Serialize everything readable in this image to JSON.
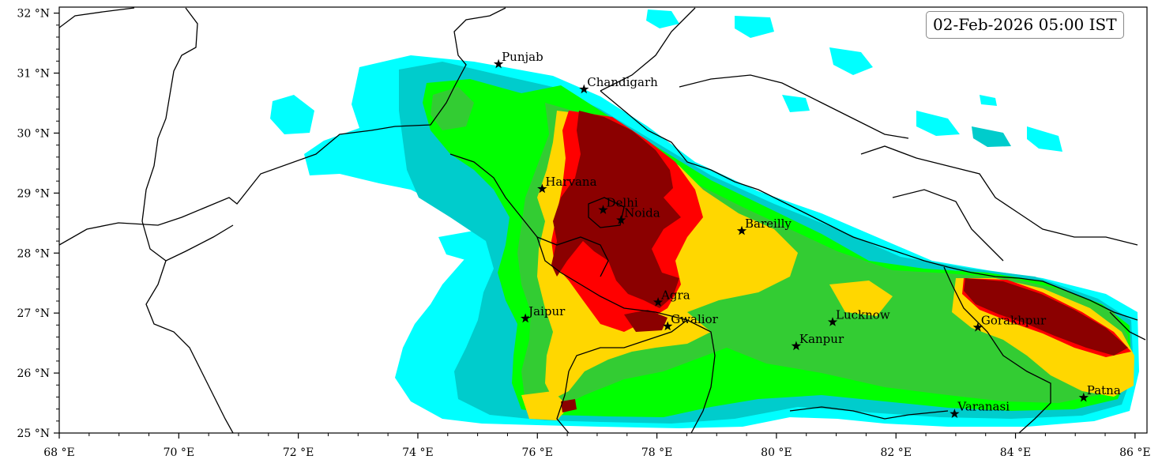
{
  "timestamp": "02-Feb-2026 05:00 IST",
  "x_axis": {
    "range": [
      68,
      86.2
    ],
    "major_ticks": [
      68,
      70,
      72,
      74,
      76,
      78,
      80,
      82,
      84,
      86
    ],
    "labels": [
      "68 °E",
      "70 °E",
      "72 °E",
      "74 °E",
      "76 °E",
      "78 °E",
      "80 °E",
      "82 °E",
      "84 °E",
      "86 °E"
    ]
  },
  "y_axis": {
    "range": [
      25,
      32.1
    ],
    "major_ticks": [
      25,
      26,
      27,
      28,
      29,
      30,
      31,
      32
    ],
    "labels": [
      "25 °N",
      "26 °N",
      "27 °N",
      "28 °N",
      "29 °N",
      "30 °N",
      "31 °N",
      "32 °N"
    ]
  },
  "colors": {
    "cyan": "#00ffff",
    "turquoise": "#00cccc",
    "green": "#00ff00",
    "limegreen": "#33cc33",
    "gold": "#ffd700",
    "red": "#ff0000",
    "darkred": "#8b0000"
  },
  "cities": [
    {
      "name": "Punjab",
      "lon": 75.35,
      "lat": 31.15
    },
    {
      "name": "Chandigarh",
      "lon": 76.78,
      "lat": 30.73
    },
    {
      "name": "Harvana",
      "lon": 76.08,
      "lat": 29.07
    },
    {
      "name": "Delhi",
      "lon": 77.1,
      "lat": 28.72
    },
    {
      "name": "Noida",
      "lon": 77.4,
      "lat": 28.55
    },
    {
      "name": "Bareilly",
      "lon": 79.42,
      "lat": 28.37
    },
    {
      "name": "Agra",
      "lon": 78.02,
      "lat": 27.18
    },
    {
      "name": "Jaipur",
      "lon": 75.8,
      "lat": 26.91
    },
    {
      "name": "Gwalior",
      "lon": 78.18,
      "lat": 26.78
    },
    {
      "name": "Lucknow",
      "lon": 80.94,
      "lat": 26.85
    },
    {
      "name": "Kanpur",
      "lon": 80.33,
      "lat": 26.45
    },
    {
      "name": "Gorakhpur",
      "lon": 83.37,
      "lat": 26.76
    },
    {
      "name": "Varanasi",
      "lon": 82.98,
      "lat": 25.32
    },
    {
      "name": "Patna",
      "lon": 85.14,
      "lat": 25.59
    }
  ]
}
